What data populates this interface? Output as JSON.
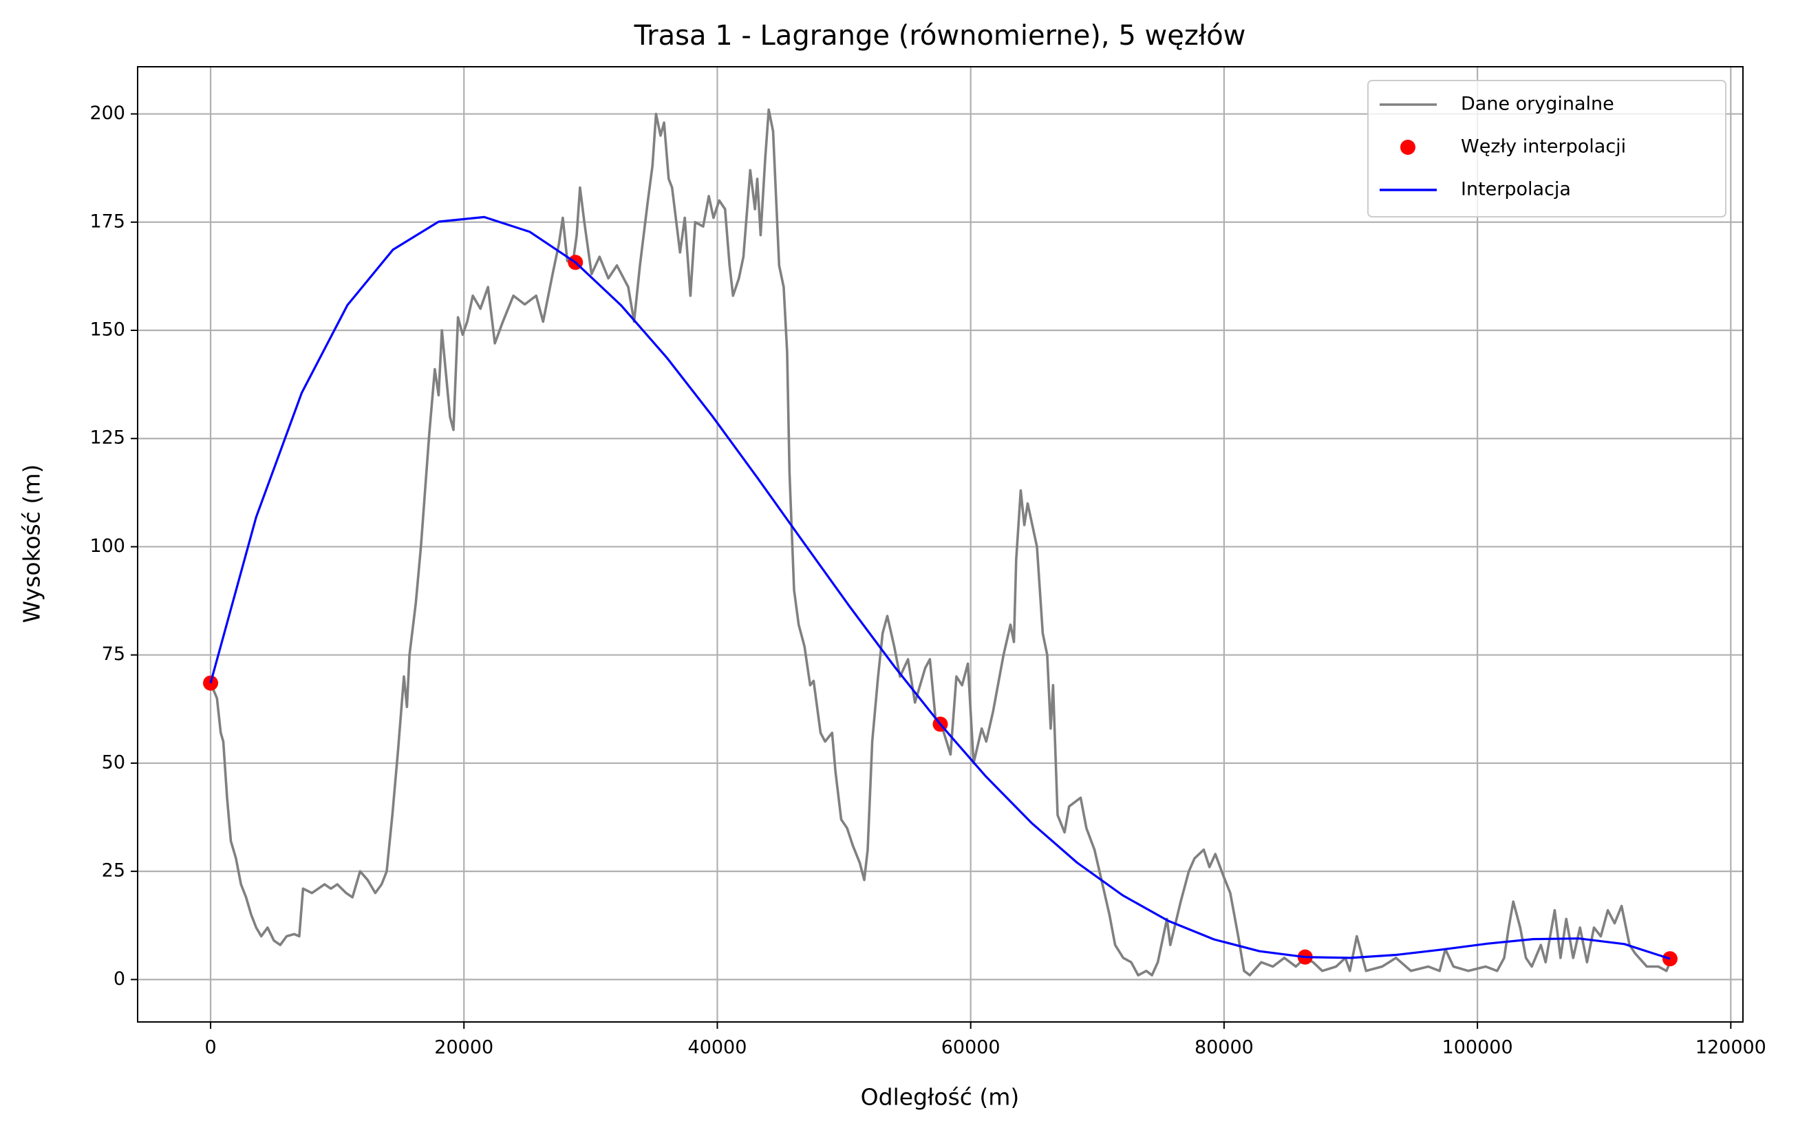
{
  "chart_data": {
    "type": "line",
    "title": "Trasa 1 - Lagrange (równomierne), 5 węzłów",
    "xlabel": "Odległość (m)",
    "ylabel": "Wysokość (m)",
    "xlim": [
      -5760,
      120960
    ],
    "ylim": [
      -9.8,
      210.9
    ],
    "xticks": [
      0,
      20000,
      40000,
      60000,
      80000,
      100000,
      120000
    ],
    "yticks": [
      0,
      25,
      50,
      75,
      100,
      125,
      150,
      175,
      200
    ],
    "grid": true,
    "legend": "upper right",
    "series": [
      {
        "name": "Dane oryginalne",
        "type": "line",
        "color": "#808080",
        "x": [
          0,
          500,
          800,
          1000,
          1300,
          1600,
          2000,
          2400,
          2800,
          3200,
          3600,
          4000,
          4500,
          5000,
          5500,
          6000,
          6600,
          7000,
          7300,
          8000,
          8500,
          9000,
          9500,
          10000,
          10700,
          11200,
          11800,
          12400,
          13000,
          13500,
          13900,
          14350,
          14800,
          15260,
          15500,
          15700,
          16200,
          16600,
          17260,
          17700,
          18000,
          18260,
          18900,
          19170,
          19530,
          19900,
          20260,
          20700,
          21300,
          21900,
          22440,
          23070,
          23900,
          24800,
          25700,
          26250,
          27000,
          27500,
          27800,
          28160,
          28600,
          28900,
          29160,
          29500,
          30070,
          30700,
          31400,
          32070,
          32970,
          33430,
          33890,
          34520,
          34880,
          35160,
          35520,
          35800,
          36160,
          36430,
          37060,
          37430,
          37880,
          38250,
          38880,
          39330,
          39700,
          40150,
          40610,
          40970,
          41240,
          41700,
          42060,
          42600,
          42970,
          43150,
          43420,
          43790,
          44060,
          44400,
          44880,
          45240,
          45510,
          45700,
          46060,
          46420,
          46880,
          47330,
          47600,
          48150,
          48510,
          49060,
          49330,
          49780,
          50240,
          50690,
          51240,
          51600,
          51870,
          52230,
          52690,
          53050,
          53420,
          53960,
          54420,
          55050,
          55600,
          56410,
          56780,
          57230,
          57780,
          58410,
          58870,
          59320,
          59780,
          60230,
          60870,
          61230,
          61770,
          62590,
          63140,
          63410,
          63590,
          63950,
          64230,
          64500,
          65230,
          65690,
          66040,
          66310,
          66500,
          66860,
          67410,
          67770,
          68680,
          69130,
          69770,
          70400,
          70950,
          71400,
          72040,
          72670,
          73220,
          73860,
          74310,
          74770,
          75490,
          75760,
          76580,
          77220,
          77670,
          78400,
          78850,
          79310,
          79940,
          80490,
          81120,
          81580,
          82030,
          82940,
          83850,
          84760,
          85670,
          86390,
          87030,
          87750,
          88850,
          89570,
          89930,
          90480,
          91210,
          92480,
          93570,
          94750,
          96120,
          97020,
          97470,
          98110,
          99290,
          100650,
          101560,
          102110,
          102470,
          102830,
          103380,
          103830,
          104290,
          105010,
          105380,
          106100,
          106560,
          107010,
          107560,
          108100,
          108650,
          109200,
          109740,
          110290,
          110830,
          111380,
          112010,
          112460,
          113370,
          114280,
          114920,
          115200
        ],
        "values": [
          68.5,
          65,
          57,
          55,
          42,
          32,
          28,
          22,
          19,
          15,
          12,
          10,
          12,
          9,
          8,
          10,
          10.5,
          10,
          21,
          20,
          21,
          22,
          21,
          22,
          20,
          19,
          25,
          23,
          20,
          22,
          25,
          38,
          53,
          70,
          63,
          75,
          87,
          100,
          126,
          141,
          135,
          150,
          130,
          127,
          153,
          149,
          152,
          158,
          155,
          160,
          147,
          152,
          158,
          156,
          158,
          152,
          163,
          170,
          176,
          166,
          165.7,
          172,
          183,
          175,
          163,
          167,
          162,
          165,
          160,
          152,
          165,
          180,
          188,
          200,
          195,
          198,
          185,
          183,
          168,
          176,
          158,
          175,
          174,
          181,
          176,
          180,
          178,
          165,
          158,
          162,
          167,
          187,
          178,
          185,
          172,
          190,
          201,
          196,
          165,
          160,
          145,
          117,
          90,
          82,
          77,
          68,
          69,
          57,
          55,
          57,
          48,
          37,
          35,
          31,
          27,
          23,
          30,
          55,
          70,
          80,
          84,
          77,
          70,
          74,
          64,
          72,
          74,
          60,
          58,
          52,
          70,
          68,
          73,
          50,
          58,
          55,
          62,
          75,
          82,
          78,
          97,
          113,
          105,
          110,
          100,
          80,
          75,
          58,
          68,
          38,
          34,
          40,
          42,
          35,
          30,
          22,
          15,
          8,
          5,
          4,
          1,
          2,
          1,
          4,
          14,
          8,
          18,
          25,
          28,
          30,
          26,
          29,
          24,
          20,
          10,
          2,
          1,
          4,
          3,
          5,
          3,
          5,
          4,
          2,
          3,
          5,
          2,
          10,
          2,
          3,
          5,
          2,
          3,
          2,
          7,
          3,
          2,
          3,
          2,
          5,
          12,
          18,
          12,
          5,
          3,
          8,
          4,
          16,
          5,
          14,
          5,
          12,
          4,
          12,
          10,
          16,
          13,
          17,
          8,
          6,
          3,
          3,
          2,
          4
        ]
      },
      {
        "name": "Węzły interpolacji",
        "type": "scatter",
        "color": "#ff0000",
        "x": [
          0,
          28800,
          57600,
          86400,
          115200
        ],
        "values": [
          68.5,
          165.7,
          59,
          5.2,
          4.8
        ]
      },
      {
        "name": "Interpolacja",
        "type": "line",
        "color": "#0000ff",
        "x": [
          0,
          3600,
          7200,
          10800,
          14400,
          18000,
          21600,
          25200,
          28800,
          32400,
          36000,
          39600,
          43200,
          46800,
          50400,
          54000,
          57600,
          61200,
          64800,
          68400,
          72000,
          75600,
          79200,
          82800,
          86400,
          90000,
          93600,
          97200,
          100800,
          104400,
          108000,
          111600,
          115200
        ],
        "values": [
          68.5,
          106.87,
          135.6,
          155.82,
          168.65,
          175.11,
          176.18,
          172.76,
          165.7,
          155.78,
          143.73,
          130.2,
          115.78,
          101.01,
          86.37,
          72.25,
          59,
          46.91,
          36.19,
          27.01,
          19.45,
          13.55,
          9.28,
          6.54,
          5.2,
          5,
          5.7,
          6.93,
          8.29,
          9.34,
          9.49,
          8.2,
          4.8
        ]
      }
    ]
  }
}
